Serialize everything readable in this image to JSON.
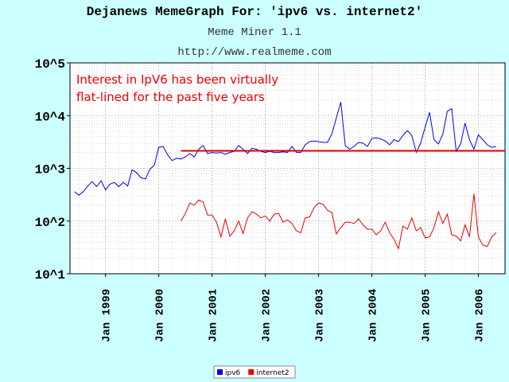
{
  "chart_data": {
    "type": "line",
    "title": "Dejanews MemeGraph For: 'ipv6 vs. internet2'",
    "subtitle": "Meme Miner 1.1",
    "source": "http://www.realmeme.com",
    "annotation": [
      "Interest in IpV6 has been virtually",
      "flat-lined for the past five years"
    ],
    "annotation_color": "#ee0000",
    "reference_line": {
      "value": 2150,
      "x_start": "2000-06",
      "color": "#dd0000"
    },
    "log_scale": true,
    "grid": true,
    "legend": "bottom",
    "x": [
      "1998-06",
      "1998-07",
      "1998-08",
      "1998-09",
      "1998-10",
      "1998-11",
      "1998-12",
      "1999-01",
      "1999-02",
      "1999-03",
      "1999-04",
      "1999-05",
      "1999-06",
      "1999-07",
      "1999-08",
      "1999-09",
      "1999-10",
      "1999-11",
      "1999-12",
      "2000-01",
      "2000-02",
      "2000-03",
      "2000-04",
      "2000-05",
      "2000-06",
      "2000-07",
      "2000-08",
      "2000-09",
      "2000-10",
      "2000-11",
      "2000-12",
      "2001-01",
      "2001-02",
      "2001-03",
      "2001-04",
      "2001-05",
      "2001-06",
      "2001-07",
      "2001-08",
      "2001-09",
      "2001-10",
      "2001-11",
      "2001-12",
      "2002-01",
      "2002-02",
      "2002-03",
      "2002-04",
      "2002-05",
      "2002-06",
      "2002-07",
      "2002-08",
      "2002-09",
      "2002-10",
      "2002-11",
      "2002-12",
      "2003-01",
      "2003-02",
      "2003-03",
      "2003-04",
      "2003-05",
      "2003-06",
      "2003-07",
      "2003-08",
      "2003-09",
      "2003-10",
      "2003-11",
      "2003-12",
      "2004-01",
      "2004-02",
      "2004-03",
      "2004-04",
      "2004-05",
      "2004-06",
      "2004-07",
      "2004-08",
      "2004-09",
      "2004-10",
      "2004-11",
      "2004-12",
      "2005-01",
      "2005-02",
      "2005-03",
      "2005-04",
      "2005-05",
      "2005-06",
      "2005-07",
      "2005-08",
      "2005-09",
      "2005-10",
      "2005-11",
      "2005-12",
      "2006-01",
      "2006-02",
      "2006-03",
      "2006-04",
      "2006-05"
    ],
    "series": [
      {
        "name": "ipv6",
        "color": "#0000ee",
        "values": [
          360,
          310,
          360,
          460,
          560,
          450,
          580,
          390,
          500,
          540,
          450,
          540,
          460,
          940,
          830,
          660,
          630,
          960,
          1150,
          2500,
          2600,
          1800,
          1400,
          1550,
          1500,
          1650,
          1900,
          1650,
          2300,
          2700,
          1900,
          2000,
          1950,
          2000,
          1850,
          2000,
          2100,
          2700,
          2300,
          1900,
          2400,
          2300,
          2100,
          2000,
          2100,
          2000,
          2000,
          2050,
          2000,
          2600,
          2000,
          2000,
          2800,
          3200,
          3300,
          3200,
          3100,
          3100,
          4500,
          9000,
          18000,
          2700,
          2300,
          2600,
          3100,
          3000,
          2600,
          3700,
          3800,
          3600,
          3300,
          2800,
          3500,
          3200,
          4200,
          5200,
          4200,
          2000,
          3000,
          6000,
          11500,
          3500,
          2900,
          4500,
          12000,
          13500,
          2100,
          2900,
          7200,
          3500,
          2300,
          4300,
          3500,
          2800,
          2500,
          2600
        ]
      },
      {
        "name": "internet2",
        "color": "#ee0000",
        "values": [
          null,
          null,
          null,
          null,
          null,
          null,
          null,
          null,
          null,
          null,
          null,
          null,
          null,
          null,
          null,
          null,
          null,
          null,
          null,
          null,
          null,
          null,
          null,
          null,
          100,
          140,
          220,
          200,
          250,
          230,
          130,
          130,
          95,
          50,
          110,
          52,
          65,
          100,
          58,
          115,
          150,
          135,
          115,
          125,
          100,
          135,
          140,
          95,
          105,
          90,
          65,
          60,
          115,
          120,
          180,
          220,
          210,
          160,
          145,
          57,
          75,
          95,
          95,
          90,
          110,
          85,
          70,
          70,
          55,
          65,
          95,
          60,
          45,
          30,
          80,
          70,
          115,
          65,
          75,
          48,
          50,
          75,
          150,
          90,
          135,
          55,
          52,
          42,
          85,
          50,
          330,
          50,
          35,
          33,
          50,
          60
        ]
      }
    ],
    "xlim": [
      "1998-05",
      "2006-07"
    ],
    "xticks": [
      {
        "value": "1999-01",
        "label": "Jan 1999"
      },
      {
        "value": "2000-01",
        "label": "Jan 2000"
      },
      {
        "value": "2001-01",
        "label": "Jan 2001"
      },
      {
        "value": "2002-01",
        "label": "Jan 2002"
      },
      {
        "value": "2003-01",
        "label": "Jan 2003"
      },
      {
        "value": "2004-01",
        "label": "Jan 2004"
      },
      {
        "value": "2005-01",
        "label": "Jan 2005"
      },
      {
        "value": "2006-01",
        "label": "Jan 2006"
      }
    ],
    "ylim": [
      10,
      100000
    ],
    "yticks": [
      {
        "value": 10,
        "label": "10^1"
      },
      {
        "value": 100,
        "label": "10^2"
      },
      {
        "value": 1000,
        "label": "10^3"
      },
      {
        "value": 10000,
        "label": "10^4"
      },
      {
        "value": 100000,
        "label": "10^5"
      }
    ]
  }
}
